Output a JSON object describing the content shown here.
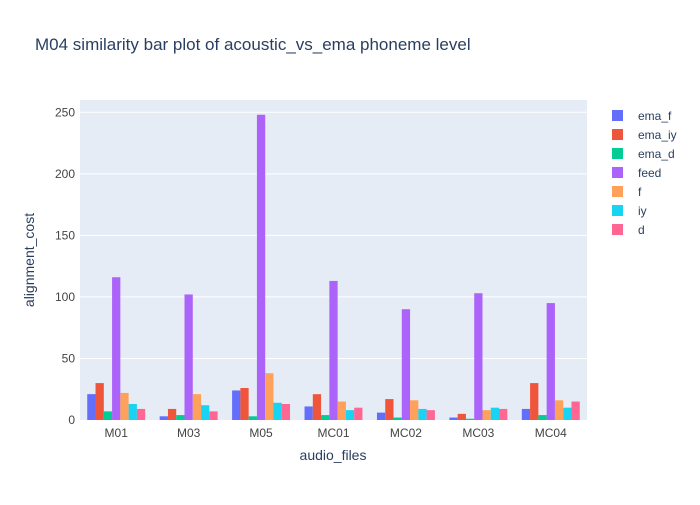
{
  "chart_data": {
    "type": "bar",
    "title": "M04 similarity bar plot of acoustic_vs_ema phoneme level",
    "xlabel": "audio_files",
    "ylabel": "alignment_cost",
    "categories": [
      "M01",
      "M03",
      "M05",
      "MC01",
      "MC02",
      "MC03",
      "MC04"
    ],
    "ylim": [
      0,
      260
    ],
    "yticks": [
      0,
      50,
      100,
      150,
      200,
      250
    ],
    "grid": true,
    "legend_position": "right",
    "series": [
      {
        "name": "ema_f",
        "color": "#636efa",
        "values": [
          21,
          3,
          24,
          11,
          6,
          2,
          9
        ]
      },
      {
        "name": "ema_iy",
        "color": "#ef553b",
        "values": [
          30,
          9,
          26,
          21,
          17,
          5,
          30
        ]
      },
      {
        "name": "ema_d",
        "color": "#00cc96",
        "values": [
          7,
          4,
          3,
          4,
          2,
          1,
          4
        ]
      },
      {
        "name": "feed",
        "color": "#ab63fa",
        "values": [
          116,
          102,
          248,
          113,
          90,
          103,
          95
        ]
      },
      {
        "name": "f",
        "color": "#ffa15a",
        "values": [
          22,
          21,
          38,
          15,
          16,
          8,
          16
        ]
      },
      {
        "name": "iy",
        "color": "#19d3f3",
        "values": [
          13,
          12,
          14,
          8,
          9,
          10,
          10
        ]
      },
      {
        "name": "d",
        "color": "#ff6692",
        "values": [
          9,
          7,
          13,
          10,
          8,
          9,
          15
        ]
      }
    ],
    "colors": {
      "plot_background": "#e5ecf6",
      "gridline": "#ffffff",
      "text": "#2a3f5f",
      "axis_text": "#444444"
    }
  }
}
